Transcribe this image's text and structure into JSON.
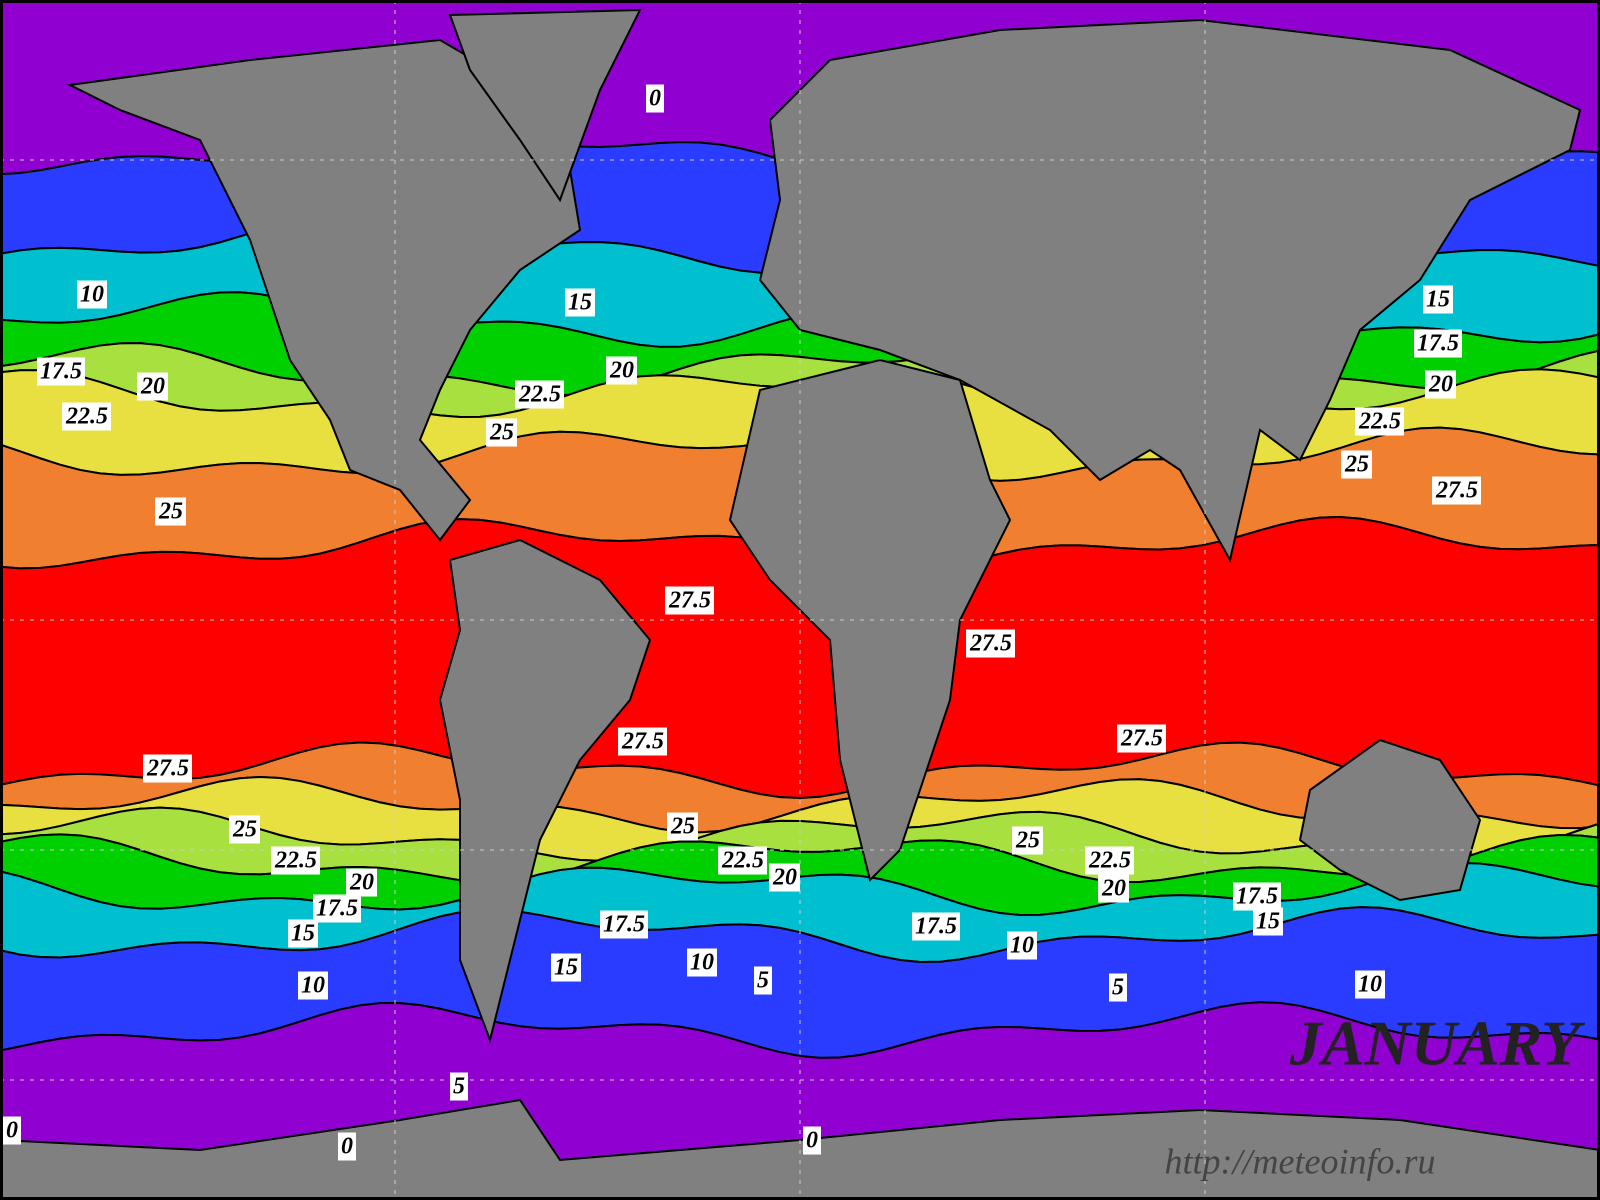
{
  "map": {
    "title": "JANUARY",
    "source": "http://meteoinfo.ru",
    "contour_labels": [
      "0",
      "10",
      "15",
      "17.5",
      "20",
      "22.5",
      "22.5",
      "20",
      "25",
      "25",
      "27.5",
      "27.5",
      "27.5",
      "27.5",
      "27.5",
      "25",
      "22.5",
      "20",
      "17.5",
      "15",
      "25",
      "22.5",
      "20",
      "17.5",
      "15",
      "10",
      "5",
      "10",
      "17.5",
      "10",
      "25",
      "22.5",
      "20",
      "17.5",
      "15",
      "5",
      "10",
      "5",
      "0",
      "0",
      "0",
      "17.5",
      "20",
      "22.5",
      "25",
      "27.5",
      "15"
    ]
  }
}
